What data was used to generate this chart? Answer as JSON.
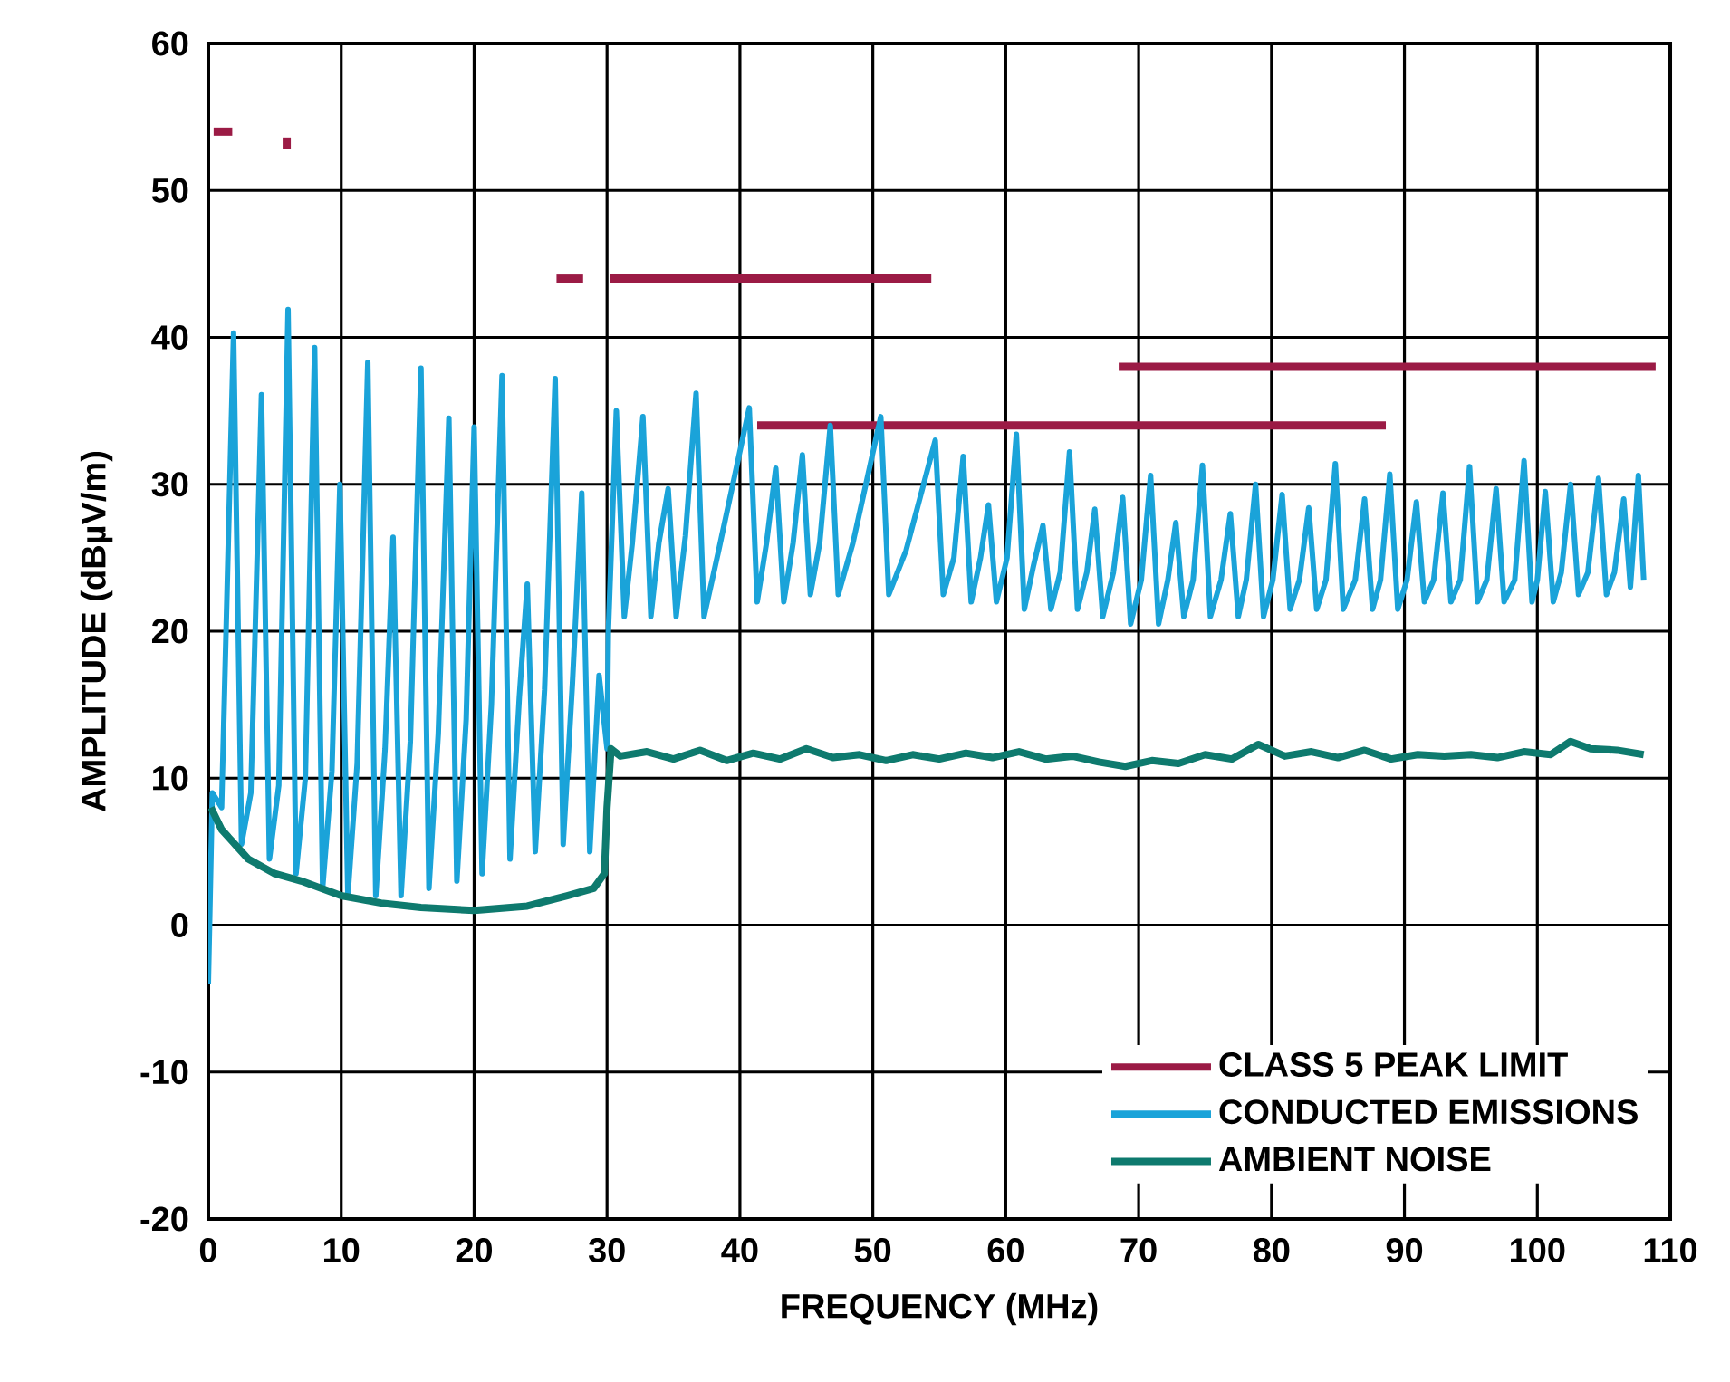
{
  "chart_data": {
    "type": "line",
    "xlabel": "FREQUENCY (MHz)",
    "ylabel": "AMPLITUDE (dBµV/m)",
    "xlim": [
      0,
      110
    ],
    "ylim": [
      -20,
      60
    ],
    "xticks": [
      0,
      10,
      20,
      30,
      40,
      50,
      60,
      70,
      80,
      90,
      100,
      110
    ],
    "yticks": [
      -20,
      -10,
      0,
      10,
      20,
      30,
      40,
      50,
      60
    ],
    "grid": true,
    "legend": "bottom right",
    "marker": "none",
    "line_style": "solid",
    "series": [
      {
        "name": "CLASS 5 PEAK LIMIT",
        "color": "#9b1b45",
        "x": [
          30.2,
          54.4
        ],
        "values": [
          44,
          44
        ]
      },
      {
        "color": "#9b1b45",
        "x": [
          0.4,
          1.8
        ],
        "values": [
          54,
          54
        ]
      },
      {
        "color": "#9b1b45",
        "x": [
          5.9,
          5.9
        ],
        "values": [
          52.8,
          53.6
        ]
      },
      {
        "color": "#9b1b45",
        "x": [
          26.2,
          28.2
        ],
        "values": [
          44,
          44
        ]
      },
      {
        "color": "#9b1b45",
        "x": [
          41.3,
          88.6
        ],
        "values": [
          34,
          34
        ]
      },
      {
        "color": "#9b1b45",
        "x": [
          68.5,
          108.9
        ],
        "values": [
          38,
          38
        ]
      },
      {
        "name": "CONDUCTED EMISSIONS",
        "color": "#1aa3d9",
        "x": [
          0,
          0.3,
          1.0,
          1.9,
          2.5,
          3.2,
          4.0,
          4.6,
          5.3,
          6.0,
          6.6,
          7.3,
          8.0,
          8.6,
          9.3,
          9.9,
          10.5,
          11.2,
          12.0,
          12.6,
          13.3,
          13.9,
          14.5,
          15.2,
          16.0,
          16.6,
          17.3,
          18.1,
          18.7,
          19.4,
          20.0,
          20.6,
          21.3,
          22.1,
          22.7,
          23.4,
          24.0,
          24.6,
          25.3,
          26.1,
          26.7,
          27.4,
          28.1,
          28.7,
          29.4,
          30.0,
          30.1,
          30.7,
          31.3,
          31.9,
          32.7,
          33.3,
          33.9,
          34.6,
          35.2,
          35.9,
          36.7,
          37.3,
          38.4,
          40.7,
          41.3,
          42.0,
          42.7,
          43.3,
          44.0,
          44.7,
          45.3,
          46.0,
          46.8,
          47.4,
          48.5,
          50.6,
          51.2,
          52.5,
          54.7,
          55.3,
          56.1,
          56.8,
          57.4,
          58.1,
          58.7,
          59.3,
          60.1,
          60.8,
          61.4,
          62.1,
          62.8,
          63.4,
          64.1,
          64.8,
          65.4,
          66.1,
          66.7,
          67.3,
          68.1,
          68.8,
          69.4,
          70.2,
          70.9,
          71.5,
          72.2,
          72.8,
          73.4,
          74.1,
          74.8,
          75.4,
          76.2,
          76.9,
          77.5,
          78.1,
          78.8,
          79.4,
          80.1,
          80.8,
          81.4,
          82.1,
          82.8,
          83.4,
          84.1,
          84.8,
          85.4,
          86.3,
          87.0,
          87.6,
          88.2,
          88.9,
          89.5,
          90.2,
          90.9,
          91.5,
          92.2,
          92.9,
          93.5,
          94.2,
          94.9,
          95.5,
          96.2,
          96.9,
          97.5,
          98.3,
          99.0,
          99.6,
          100.0,
          100.6,
          101.2,
          101.8,
          102.5,
          103.1,
          103.8,
          104.6,
          105.2,
          105.8,
          106.5,
          107.0,
          107.6,
          108.0
        ],
        "values": [
          -4,
          9,
          8,
          40.3,
          5.5,
          9,
          36.1,
          4.5,
          9.5,
          41.9,
          3.5,
          10,
          39.3,
          2.5,
          10.5,
          30.0,
          2,
          11,
          38.3,
          2,
          12,
          26.4,
          2,
          12.5,
          37.9,
          2.5,
          13,
          34.5,
          3,
          14,
          33.9,
          3.5,
          15,
          37.4,
          4.5,
          15.5,
          23.2,
          5,
          16,
          37.2,
          5.5,
          16.5,
          29.4,
          5,
          17,
          12,
          20,
          35.0,
          21,
          26,
          34.6,
          21,
          26,
          29.7,
          21,
          26.5,
          36.2,
          21,
          25.5,
          35.2,
          22,
          26,
          31.1,
          22,
          26,
          32.0,
          22.5,
          26,
          34.0,
          22.5,
          26,
          34.6,
          22.5,
          25.5,
          33.0,
          22.5,
          25,
          31.9,
          22,
          25,
          28.6,
          22,
          25,
          33.4,
          21.5,
          24.5,
          27.2,
          21.5,
          24,
          32.2,
          21.5,
          24,
          28.3,
          21,
          24,
          29.1,
          20.5,
          23.5,
          30.6,
          20.5,
          23.5,
          27.4,
          21,
          23.5,
          31.3,
          21,
          23.5,
          28.0,
          21,
          23.5,
          30.0,
          21,
          23.5,
          29.3,
          21.5,
          23.5,
          28.4,
          21.5,
          23.5,
          31.4,
          21.5,
          23.5,
          29.0,
          21.5,
          23.5,
          30.7,
          21.5,
          23.5,
          28.8,
          22,
          23.5,
          29.4,
          22,
          23.5,
          31.2,
          22,
          23.5,
          29.7,
          22,
          23.5,
          31.6,
          22,
          23.5,
          29.5,
          22,
          24,
          30.0,
          22.5,
          24,
          30.4,
          22.5,
          24,
          29.0,
          23,
          30.6,
          23.5
        ]
      },
      {
        "name": "AMBIENT NOISE",
        "color": "#0e7a6e",
        "x": [
          0.2,
          1,
          2,
          3,
          5,
          7,
          10,
          13,
          16,
          20,
          24,
          27,
          29,
          29.8,
          30,
          30.3,
          31,
          33,
          35,
          37,
          39,
          41,
          43,
          45,
          47,
          49,
          51,
          53,
          55,
          57,
          59,
          61,
          63,
          65,
          67,
          69,
          71,
          73,
          75,
          77,
          79,
          81,
          83,
          85,
          87,
          89,
          91,
          93,
          95,
          97,
          99,
          101,
          102.5,
          104,
          106,
          108
        ],
        "values": [
          8,
          6.5,
          5.5,
          4.5,
          3.5,
          3,
          2,
          1.5,
          1.2,
          1,
          1.3,
          2,
          2.5,
          3.5,
          8,
          12,
          11.5,
          11.8,
          11.3,
          11.9,
          11.2,
          11.7,
          11.3,
          12,
          11.4,
          11.6,
          11.2,
          11.6,
          11.3,
          11.7,
          11.4,
          11.8,
          11.3,
          11.5,
          11.1,
          10.8,
          11.2,
          11,
          11.6,
          11.3,
          12.3,
          11.5,
          11.8,
          11.4,
          11.9,
          11.3,
          11.6,
          11.5,
          11.6,
          11.4,
          11.8,
          11.6,
          12.5,
          12,
          11.9,
          11.6
        ]
      }
    ]
  }
}
